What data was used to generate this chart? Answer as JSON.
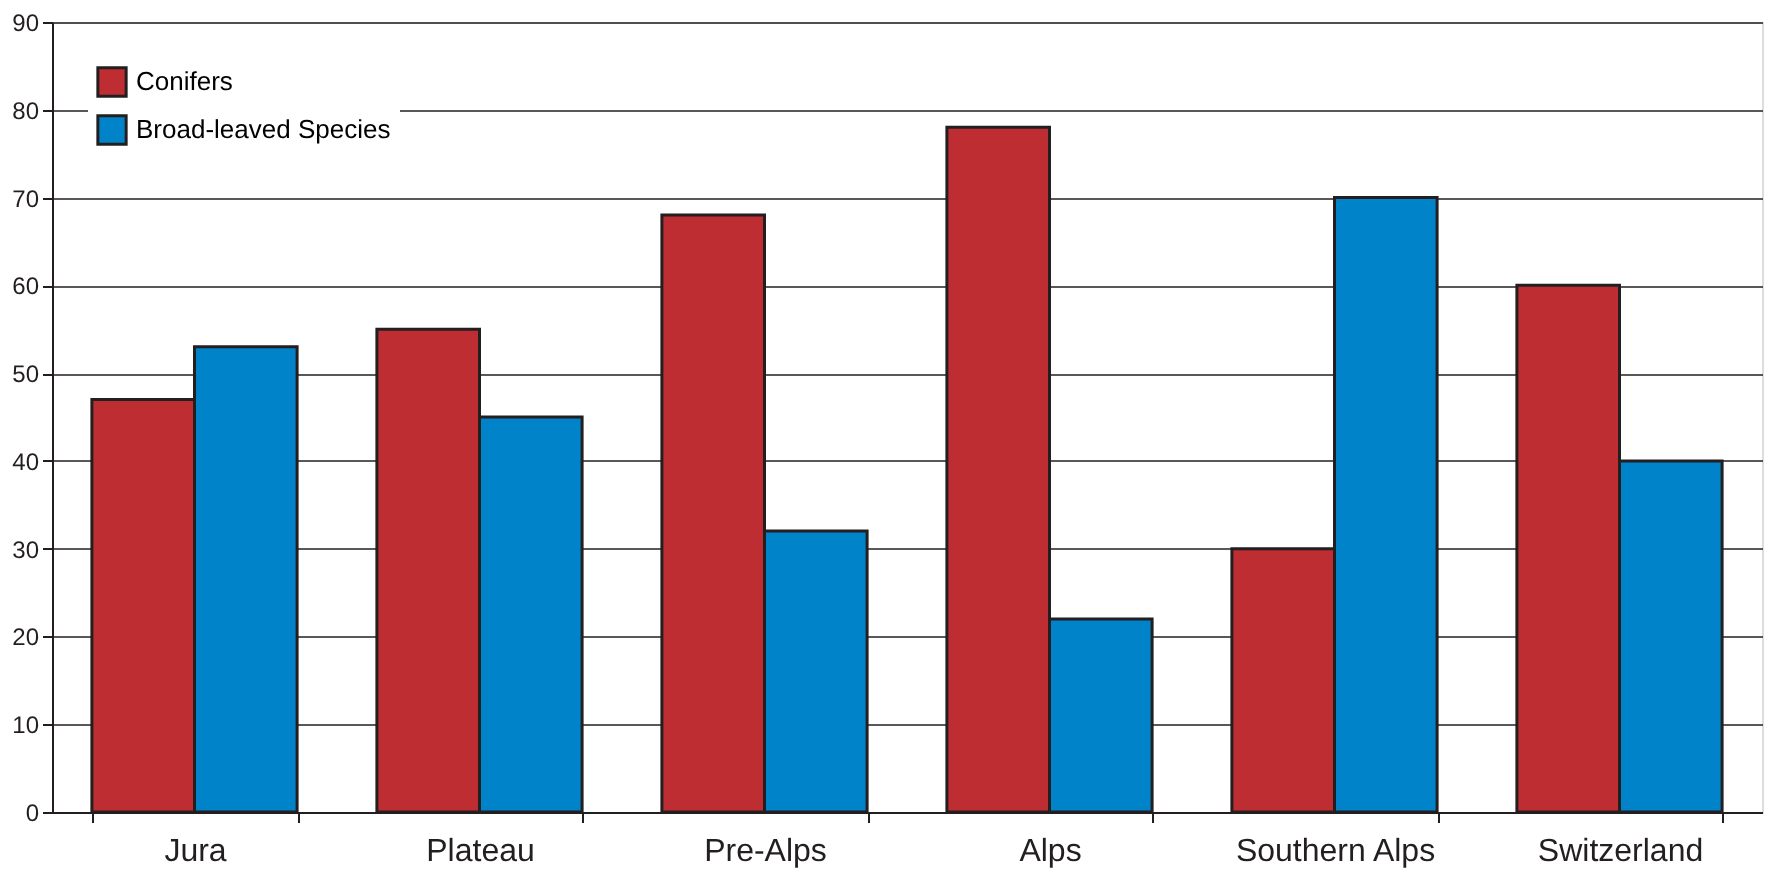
{
  "chart_data": {
    "type": "bar",
    "categories": [
      "Jura",
      "Plateau",
      "Pre-Alps",
      "Alps",
      "Southern Alps",
      "Switzerland"
    ],
    "series": [
      {
        "name": "Conifers",
        "color": "#be2d32",
        "values": [
          47,
          55,
          68,
          78,
          30,
          60
        ]
      },
      {
        "name": "Broad-leaved Species",
        "color": "#0083c8",
        "values": [
          53,
          45,
          32,
          22,
          70,
          40
        ]
      }
    ],
    "ylim": [
      0,
      90
    ],
    "yticks": [
      0,
      10,
      20,
      30,
      40,
      50,
      60,
      70,
      80,
      90
    ],
    "grid": "y",
    "legend": "top left"
  }
}
